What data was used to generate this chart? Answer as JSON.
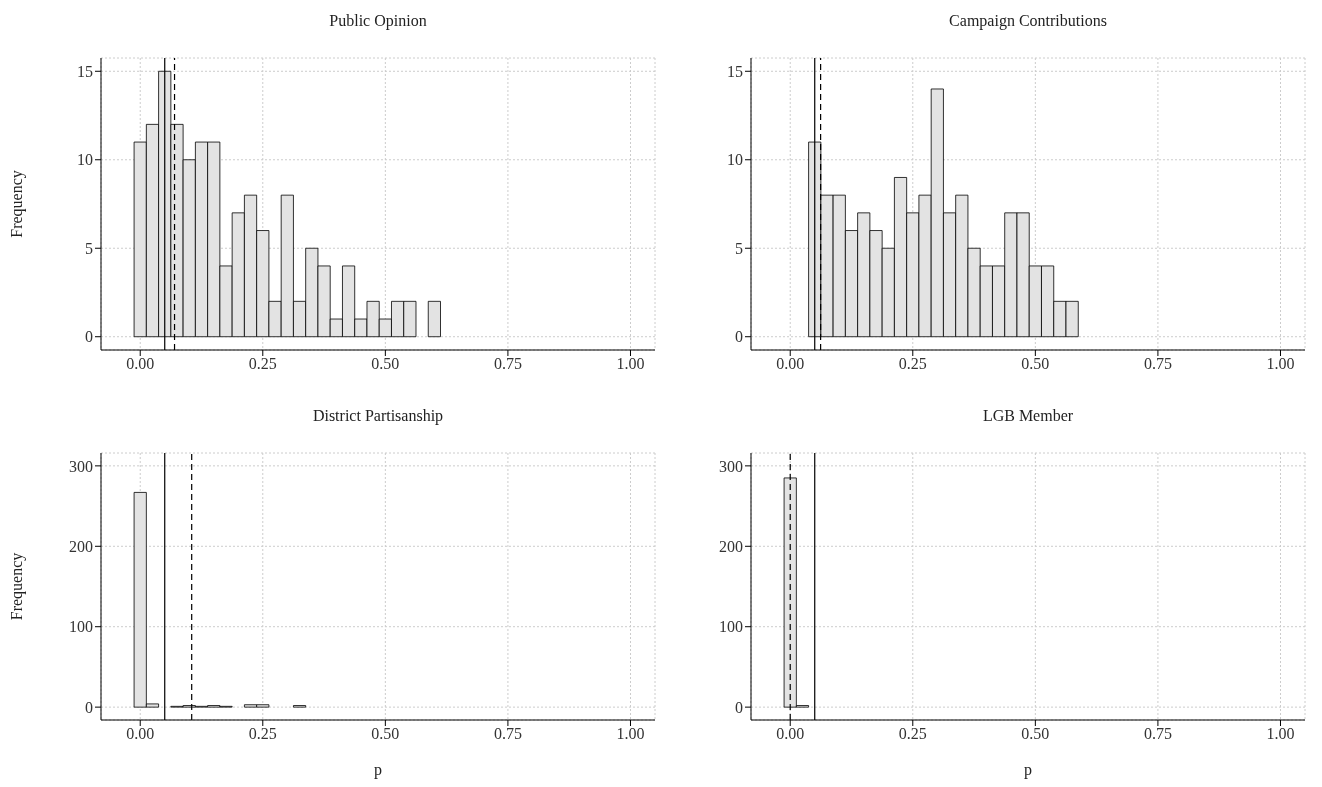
{
  "chart_data": [
    {
      "type": "histogram",
      "title": "Public Opinion",
      "ylabel": "Frequency",
      "color": "#e3e3e3",
      "grid": true,
      "xlim": [
        -0.08,
        1.05
      ],
      "ylim": [
        -0.75,
        15.75
      ],
      "xticks": [
        {
          "value": 0,
          "label": "0.00"
        },
        {
          "value": 0.25,
          "label": "0.25"
        },
        {
          "value": 0.5,
          "label": "0.50"
        },
        {
          "value": 0.75,
          "label": "0.75"
        },
        {
          "value": 1,
          "label": "1.00"
        }
      ],
      "yticks": [
        0,
        5,
        10,
        15
      ],
      "bins": [
        -0.0375,
        -0.0125,
        0.0125,
        0.0375,
        0.0625,
        0.0875,
        0.1125,
        0.1375,
        0.1625,
        0.1875,
        0.2125,
        0.2375,
        0.2625,
        0.2875,
        0.3125,
        0.3375,
        0.3625,
        0.3875,
        0.4125,
        0.4375,
        0.4625,
        0.4875,
        0.5125,
        0.5375,
        0.5625,
        0.5875,
        0.6125,
        0.6375,
        0.6625,
        0.6875,
        0.7125,
        0.7375,
        0.7625,
        0.7875,
        0.8125,
        0.8375,
        0.8625,
        0.8875,
        0.9125,
        0.9375,
        0.9625,
        0.9875
      ],
      "values": [
        0,
        11,
        12,
        15,
        12,
        10,
        11,
        11,
        4,
        7,
        8,
        6,
        2,
        8,
        2,
        5,
        4,
        1,
        4,
        1,
        2,
        1,
        2,
        2,
        0,
        2,
        0,
        0,
        0,
        0,
        0,
        0,
        0,
        0,
        0,
        0,
        0,
        0,
        0,
        0,
        0
      ],
      "ref_lines": [
        {
          "axis": "x",
          "value": 0.05,
          "color": "#000000",
          "line_style": "solid"
        },
        {
          "axis": "x",
          "value": 0.07,
          "color": "#000000",
          "line_style": "dashed"
        }
      ]
    },
    {
      "type": "histogram",
      "title": "Campaign Contributions",
      "color": "#e3e3e3",
      "grid": true,
      "xlim": [
        -0.08,
        1.05
      ],
      "ylim": [
        -0.75,
        15.75
      ],
      "xticks": [
        {
          "value": 0,
          "label": "0.00"
        },
        {
          "value": 0.25,
          "label": "0.25"
        },
        {
          "value": 0.5,
          "label": "0.50"
        },
        {
          "value": 0.75,
          "label": "0.75"
        },
        {
          "value": 1,
          "label": "1.00"
        }
      ],
      "yticks": [
        0,
        5,
        10,
        15
      ],
      "bins": [
        -0.0375,
        -0.0125,
        0.0125,
        0.0375,
        0.0625,
        0.0875,
        0.1125,
        0.1375,
        0.1625,
        0.1875,
        0.2125,
        0.2375,
        0.2625,
        0.2875,
        0.3125,
        0.3375,
        0.3625,
        0.3875,
        0.4125,
        0.4375,
        0.4625,
        0.4875,
        0.5125,
        0.5375,
        0.5625,
        0.5875,
        0.6125,
        0.6375,
        0.6625,
        0.6875,
        0.7125,
        0.7375,
        0.7625,
        0.7875,
        0.8125,
        0.8375,
        0.8625,
        0.8875,
        0.9125,
        0.9375,
        0.9625,
        0.9875
      ],
      "values": [
        0,
        0,
        0,
        11,
        8,
        8,
        6,
        7,
        6,
        5,
        9,
        7,
        8,
        14,
        7,
        8,
        5,
        4,
        4,
        7,
        7,
        4,
        4,
        2,
        2,
        0,
        0,
        0,
        0,
        0,
        0,
        0,
        0,
        0,
        0,
        0,
        0,
        0,
        0,
        0,
        0
      ],
      "ref_lines": [
        {
          "axis": "x",
          "value": 0.05,
          "color": "#000000",
          "line_style": "solid"
        },
        {
          "axis": "x",
          "value": 0.062,
          "color": "#000000",
          "line_style": "dashed"
        }
      ]
    },
    {
      "type": "histogram",
      "title": "District Partisanship",
      "ylabel": "Frequency",
      "xlabel": "p",
      "color": "#e3e3e3",
      "grid": true,
      "xlim": [
        -0.08,
        1.05
      ],
      "ylim": [
        -16,
        316
      ],
      "xticks": [
        {
          "value": 0,
          "label": "0.00"
        },
        {
          "value": 0.25,
          "label": "0.25"
        },
        {
          "value": 0.5,
          "label": "0.50"
        },
        {
          "value": 0.75,
          "label": "0.75"
        },
        {
          "value": 1,
          "label": "1.00"
        }
      ],
      "yticks": [
        0,
        100,
        200,
        300
      ],
      "bins": [
        -0.0375,
        -0.0125,
        0.0125,
        0.0375,
        0.0625,
        0.0875,
        0.1125,
        0.1375,
        0.1625,
        0.1875,
        0.2125,
        0.2375,
        0.2625,
        0.2875,
        0.3125,
        0.3375,
        0.3625,
        0.3875,
        0.4125,
        0.4375,
        0.4625,
        0.4875,
        0.5125,
        0.5375,
        0.5625,
        0.5875,
        0.6125,
        0.6375,
        0.6625,
        0.6875,
        0.7125,
        0.7375,
        0.7625,
        0.7875,
        0.8125,
        0.8375,
        0.8625,
        0.8875,
        0.9125,
        0.9375,
        0.9625,
        0.9875
      ],
      "values": [
        0,
        267,
        4,
        0,
        1,
        2,
        1,
        2,
        1,
        0,
        3,
        3,
        0,
        0,
        2,
        0,
        0,
        0,
        0,
        0,
        0,
        0,
        0,
        0,
        0,
        0,
        0,
        0,
        0,
        0,
        0,
        0,
        0,
        0,
        0,
        0,
        0,
        0,
        0,
        0,
        0
      ],
      "ref_lines": [
        {
          "axis": "x",
          "value": 0.05,
          "color": "#000000",
          "line_style": "solid"
        },
        {
          "axis": "x",
          "value": 0.105,
          "color": "#000000",
          "line_style": "dashed"
        }
      ]
    },
    {
      "type": "histogram",
      "title": "LGB Member",
      "xlabel": "p",
      "color": "#e3e3e3",
      "grid": true,
      "xlim": [
        -0.08,
        1.05
      ],
      "ylim": [
        -16,
        316
      ],
      "xticks": [
        {
          "value": 0,
          "label": "0.00"
        },
        {
          "value": 0.25,
          "label": "0.25"
        },
        {
          "value": 0.5,
          "label": "0.50"
        },
        {
          "value": 0.75,
          "label": "0.75"
        },
        {
          "value": 1,
          "label": "1.00"
        }
      ],
      "yticks": [
        0,
        100,
        200,
        300
      ],
      "bins": [
        -0.0375,
        -0.0125,
        0.0125,
        0.0375,
        0.0625,
        0.0875,
        0.1125,
        0.1375,
        0.1625,
        0.1875,
        0.2125,
        0.2375,
        0.2625,
        0.2875,
        0.3125,
        0.3375,
        0.3625,
        0.3875,
        0.4125,
        0.4375,
        0.4625,
        0.4875,
        0.5125,
        0.5375,
        0.5625,
        0.5875,
        0.6125,
        0.6375,
        0.6625,
        0.6875,
        0.7125,
        0.7375,
        0.7625,
        0.7875,
        0.8125,
        0.8375,
        0.8625,
        0.8875,
        0.9125,
        0.9375,
        0.9625,
        0.9875
      ],
      "values": [
        0,
        285,
        2,
        0,
        0,
        0,
        0,
        0,
        0,
        0,
        0,
        0,
        0,
        0,
        0,
        0,
        0,
        0,
        0,
        0,
        0,
        0,
        0,
        0,
        0,
        0,
        0,
        0,
        0,
        0,
        0,
        0,
        0,
        0,
        0,
        0,
        0,
        0,
        0,
        0,
        0
      ],
      "ref_lines": [
        {
          "axis": "x",
          "value": 0.0,
          "color": "#000000",
          "line_style": "dashed"
        },
        {
          "axis": "x",
          "value": 0.05,
          "color": "#000000",
          "line_style": "solid"
        }
      ]
    }
  ]
}
